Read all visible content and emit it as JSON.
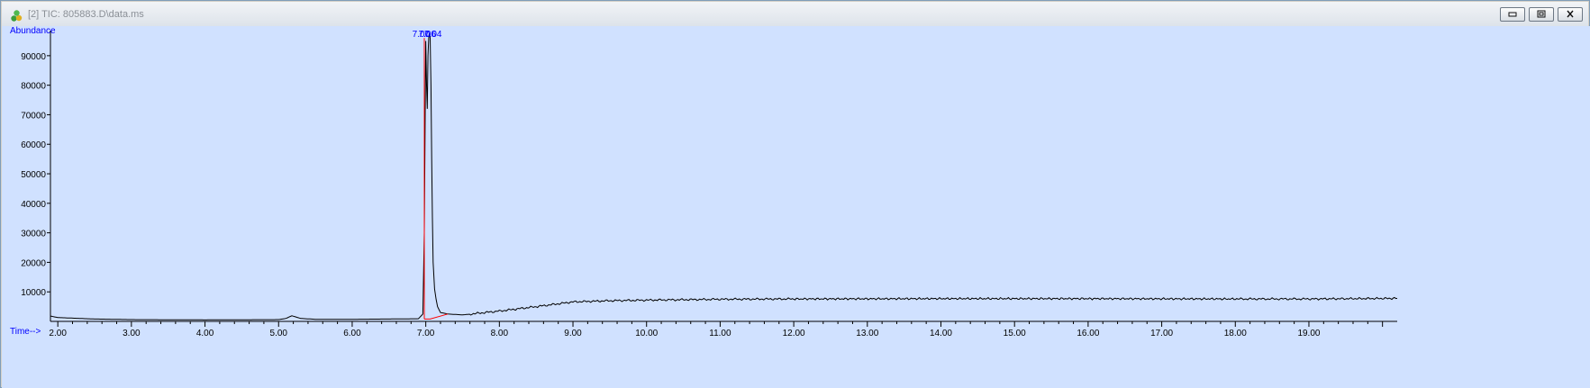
{
  "window": {
    "title": "[2] TIC: 805883.D\\data.ms",
    "buttons": [
      "minimize-icon",
      "restore-icon",
      "close-icon"
    ]
  },
  "chart_data": {
    "type": "line",
    "ylabel": "Abundance",
    "xlabel": "Time-->",
    "xlim": [
      1.9,
      20.2
    ],
    "ylim": [
      0,
      98500
    ],
    "x_ticks": [
      "2.00",
      "3.00",
      "4.00",
      "5.00",
      "6.00",
      "7.00",
      "8.00",
      "9.00",
      "10.00",
      "11.00",
      "12.00",
      "13.00",
      "14.00",
      "15.00",
      "16.00",
      "17.00",
      "18.00",
      "19.00"
    ],
    "y_ticks": [
      "10000",
      "20000",
      "30000",
      "40000",
      "50000",
      "60000",
      "70000",
      "80000",
      "90000"
    ],
    "peak_labels": [
      "7.00",
      "7.06",
      "7.04"
    ],
    "series": [
      {
        "color": "#000000",
        "x": [
          1.9,
          2.0,
          2.5,
          3.0,
          4.0,
          5.0,
          5.1,
          5.18,
          5.3,
          5.5,
          6.0,
          6.5,
          6.9,
          6.96,
          6.98,
          7.0,
          7.01,
          7.02,
          7.03,
          7.04,
          7.05,
          7.06,
          7.07,
          7.08,
          7.09,
          7.1,
          7.12,
          7.14,
          7.16,
          7.2,
          7.3,
          7.5,
          8.0,
          8.5,
          9.0,
          9.5,
          10.0,
          11.0,
          12.0,
          14.0,
          16.0,
          18.0,
          19.0,
          20.2
        ],
        "y": [
          1800,
          1300,
          800,
          600,
          500,
          600,
          1000,
          1900,
          1000,
          700,
          700,
          800,
          900,
          2500,
          30000,
          95000,
          80000,
          72000,
          90000,
          96000,
          97500,
          96000,
          80000,
          55000,
          35000,
          20000,
          11000,
          7500,
          5000,
          3000,
          2500,
          2200,
          3500,
          5000,
          6600,
          7000,
          7200,
          7500,
          7600,
          7700,
          7700,
          7600,
          7600,
          7800
        ]
      }
    ],
    "integration_baseline": {
      "color": "#ff0000",
      "x": [
        6.98,
        7.06,
        7.3
      ],
      "y": [
        800,
        800,
        2500
      ]
    },
    "grid": false,
    "legend": "none"
  }
}
